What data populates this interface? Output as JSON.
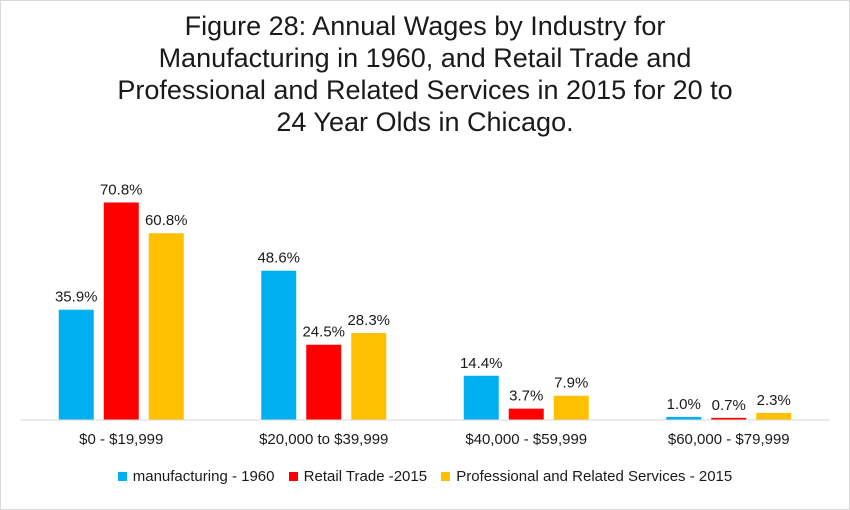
{
  "chart_data": {
    "type": "bar",
    "title_lines": [
      "Figure 28: Annual Wages by Industry for",
      "Manufacturing in 1960, and Retail Trade and",
      "Professional and Related Services in 2015 for 20 to",
      "24 Year Olds in Chicago."
    ],
    "categories": [
      "$0 - $19,999",
      "$20,000 to $39,999",
      "$40,000 - $59,999",
      "$60,000 - $79,999"
    ],
    "series": [
      {
        "name": "manufacturing - 1960",
        "color": "#00b0f0",
        "values": [
          35.9,
          48.6,
          14.4,
          1.0
        ],
        "labels": [
          "35.9%",
          "48.6%",
          "14.4%",
          "1.0%"
        ]
      },
      {
        "name": "Retail Trade -2015",
        "color": "#ff0000",
        "values": [
          70.8,
          24.5,
          3.7,
          0.7
        ],
        "labels": [
          "70.8%",
          "24.5%",
          "3.7%",
          "0.7%"
        ]
      },
      {
        "name": "Professional and Related Services - 2015",
        "color": "#ffc000",
        "values": [
          60.8,
          28.3,
          7.9,
          2.3
        ],
        "labels": [
          "60.8%",
          "28.3%",
          "7.9%",
          "2.3%"
        ]
      }
    ],
    "ylim": [
      0,
      80
    ],
    "grid": false,
    "legend_position": "bottom"
  }
}
